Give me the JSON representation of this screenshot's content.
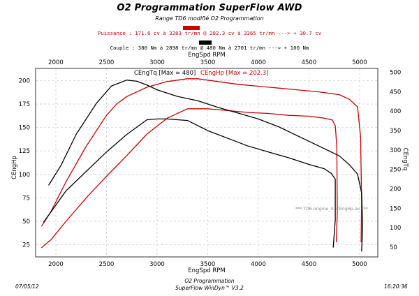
{
  "header": {
    "title": "O2 Programmation SuperFlow AWD",
    "subtitle": "Range TD6 modifié O2 Programmation",
    "power_line": "Puissance : 171.6 cv à 3283 tr/mn  @  202.3 cv à 3365 tr/mn    ---> + 30.7 cv",
    "torque_line": "Couple : 380 Nm à 2898 tr/mn  @  480 Nm à 2701 tr/mn    ---> + 100 Nm",
    "power_swatch_color": "#cc0000",
    "torque_swatch_color": "#000000"
  },
  "footer": {
    "date": "07/05/12",
    "company": "O2 Programmation",
    "software": "SuperFlow WinDyn™ V3.2",
    "time": "16:20:36"
  },
  "chart_data": {
    "type": "line",
    "title": "",
    "xlabel": "EngSpd RPM",
    "x_top_label": "EngSpd RPM",
    "ylabel_left": "CEngHp",
    "ylabel_right": "CEngTq",
    "xlim": [
      1800,
      5180
    ],
    "ylim_left": [
      12,
      213
    ],
    "ylim_right": [
      25,
      510
    ],
    "x_ticks": [
      2000,
      2500,
      3000,
      3500,
      4000,
      4500,
      5000
    ],
    "y_left_ticks": [
      25,
      50,
      75,
      100,
      125,
      150,
      175,
      200
    ],
    "y_right_ticks": [
      50,
      100,
      150,
      200,
      250,
      300,
      350,
      400,
      450,
      500
    ],
    "grid": true,
    "annotations": {
      "torque_max": "CEngTq [Max = 480]",
      "power_max": "CEngHp [Max = 202.3]",
      "run_label": "*** TD6 origine_4: CEngHp-av      ***"
    },
    "series": [
      {
        "color": "#cc0000",
        "axis": "left",
        "x": [
          1860,
          1950,
          2100,
          2300,
          2500,
          2700,
          2900,
          3100,
          3300,
          3500,
          3700,
          3900,
          4100,
          4300,
          4500,
          4650,
          4730,
          4760,
          4775,
          4780,
          4770
        ],
        "y": [
          22,
          30,
          50,
          75,
          98,
          120,
          143,
          160,
          170,
          170,
          168,
          166,
          165,
          163,
          162,
          160,
          158,
          152,
          130,
          60,
          28
        ]
      },
      {
        "color": "#cc0000",
        "axis": "left",
        "x": [
          1860,
          1950,
          2100,
          2300,
          2500,
          2600,
          2700,
          2900,
          3100,
          3300,
          3400,
          3600,
          3800,
          4000,
          4200,
          4400,
          4600,
          4800,
          4900,
          4980,
          5010,
          5020,
          5015
        ],
        "y": [
          45,
          60,
          92,
          130,
          163,
          175,
          183,
          193,
          199,
          202,
          202,
          199,
          196,
          194,
          192,
          190,
          188,
          185,
          180,
          172,
          140,
          70,
          28
        ]
      },
      {
        "color": "#000000",
        "axis": "right",
        "x": [
          1880,
          1950,
          2100,
          2300,
          2500,
          2700,
          2900,
          3000,
          3100,
          3300,
          3500,
          3700,
          3900,
          4100,
          4300,
          4500,
          4650,
          4720,
          4760,
          4760,
          4740
        ],
        "y": [
          115,
          140,
          195,
          245,
          295,
          340,
          378,
          380,
          380,
          376,
          350,
          330,
          310,
          295,
          280,
          263,
          252,
          240,
          225,
          120,
          50
        ]
      },
      {
        "color": "#000000",
        "axis": "right",
        "x": [
          1930,
          2050,
          2200,
          2400,
          2550,
          2700,
          2800,
          2900,
          3000,
          3200,
          3400,
          3600,
          3800,
          4000,
          4200,
          4400,
          4600,
          4800,
          4900,
          4980,
          5020,
          5030,
          5020
        ],
        "y": [
          210,
          260,
          340,
          420,
          465,
          480,
          477,
          467,
          455,
          438,
          427,
          410,
          395,
          380,
          360,
          335,
          310,
          285,
          262,
          238,
          190,
          100,
          40
        ]
      }
    ]
  }
}
